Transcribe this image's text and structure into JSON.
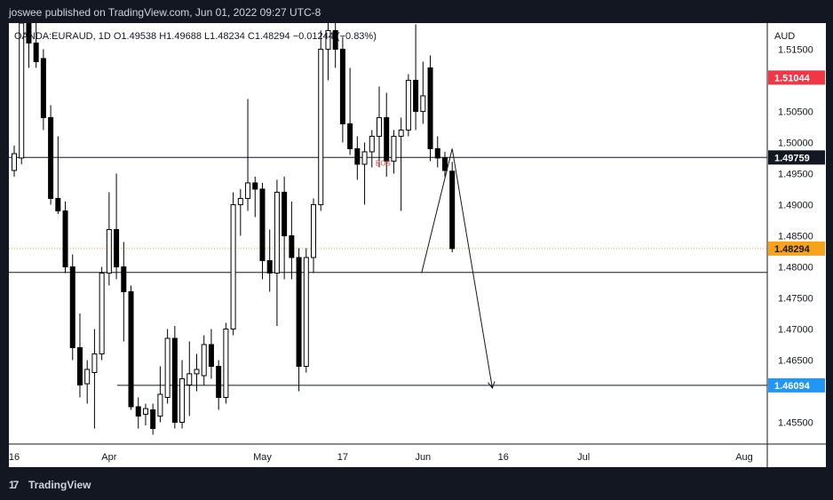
{
  "header": {
    "published": "joswee published on TradingView.com, Jun 01, 2022 09:27 UTC-8"
  },
  "footer": {
    "logo_mark": "17",
    "logo_text": "TradingView"
  },
  "chart_data": {
    "type": "candlestick",
    "symbol_line": "OANDA:EURAUD, 1D  O1.49538  H1.49688  L1.48234  C1.48294  −0.01244 (−0.83%)",
    "currency": "AUD",
    "ylim": [
      1.4515,
      1.5192
    ],
    "price_ticks": [
      "1.51500",
      "1.50500",
      "1.50000",
      "1.49500",
      "1.49000",
      "1.48500",
      "1.48000",
      "1.47500",
      "1.47000",
      "1.46500",
      "1.45500"
    ],
    "x_ticks": [
      {
        "label": "16",
        "index": 0
      },
      {
        "label": "Apr",
        "index": 13
      },
      {
        "label": "May",
        "index": 34
      },
      {
        "label": "17",
        "index": 45
      },
      {
        "label": "Jun",
        "index": 56
      },
      {
        "label": "16",
        "index": 67
      },
      {
        "label": "Jul",
        "index": 78
      },
      {
        "label": "Aug",
        "index": 100
      }
    ],
    "candles": [
      {
        "o": 1.4955,
        "h": 1.4995,
        "l": 1.4945,
        "c": 1.4982
      },
      {
        "o": 1.4975,
        "h": 1.5192,
        "l": 1.4965,
        "c": 1.5192
      },
      {
        "o": 1.5192,
        "h": 1.5192,
        "l": 1.512,
        "c": 1.516
      },
      {
        "o": 1.516,
        "h": 1.5192,
        "l": 1.512,
        "c": 1.513
      },
      {
        "o": 1.5135,
        "h": 1.515,
        "l": 1.502,
        "c": 1.504
      },
      {
        "o": 1.504,
        "h": 1.506,
        "l": 1.49,
        "c": 1.491
      },
      {
        "o": 1.491,
        "h": 1.501,
        "l": 1.4885,
        "c": 1.489
      },
      {
        "o": 1.489,
        "h": 1.4905,
        "l": 1.479,
        "c": 1.48
      },
      {
        "o": 1.48,
        "h": 1.482,
        "l": 1.465,
        "c": 1.467
      },
      {
        "o": 1.467,
        "h": 1.4725,
        "l": 1.459,
        "c": 1.461
      },
      {
        "o": 1.4612,
        "h": 1.465,
        "l": 1.458,
        "c": 1.4635
      },
      {
        "o": 1.463,
        "h": 1.47,
        "l": 1.454,
        "c": 1.466
      },
      {
        "o": 1.466,
        "h": 1.48,
        "l": 1.465,
        "c": 1.479
      },
      {
        "o": 1.479,
        "h": 1.492,
        "l": 1.477,
        "c": 1.486
      },
      {
        "o": 1.486,
        "h": 1.495,
        "l": 1.478,
        "c": 1.48
      },
      {
        "o": 1.48,
        "h": 1.484,
        "l": 1.468,
        "c": 1.476
      },
      {
        "o": 1.476,
        "h": 1.477,
        "l": 1.457,
        "c": 1.4575
      },
      {
        "o": 1.4575,
        "h": 1.459,
        "l": 1.454,
        "c": 1.456
      },
      {
        "o": 1.4563,
        "h": 1.458,
        "l": 1.4545,
        "c": 1.4572
      },
      {
        "o": 1.457,
        "h": 1.458,
        "l": 1.453,
        "c": 1.454
      },
      {
        "o": 1.456,
        "h": 1.464,
        "l": 1.455,
        "c": 1.4595
      },
      {
        "o": 1.459,
        "h": 1.47,
        "l": 1.458,
        "c": 1.4685
      },
      {
        "o": 1.4685,
        "h": 1.4705,
        "l": 1.454,
        "c": 1.455
      },
      {
        "o": 1.455,
        "h": 1.465,
        "l": 1.454,
        "c": 1.462
      },
      {
        "o": 1.461,
        "h": 1.468,
        "l": 1.456,
        "c": 1.4628
      },
      {
        "o": 1.4628,
        "h": 1.466,
        "l": 1.46,
        "c": 1.4635
      },
      {
        "o": 1.4625,
        "h": 1.469,
        "l": 1.461,
        "c": 1.4675
      },
      {
        "o": 1.4675,
        "h": 1.47,
        "l": 1.462,
        "c": 1.464
      },
      {
        "o": 1.464,
        "h": 1.465,
        "l": 1.457,
        "c": 1.459
      },
      {
        "o": 1.459,
        "h": 1.471,
        "l": 1.458,
        "c": 1.47
      },
      {
        "o": 1.47,
        "h": 1.492,
        "l": 1.469,
        "c": 1.49
      },
      {
        "o": 1.49,
        "h": 1.4925,
        "l": 1.485,
        "c": 1.491
      },
      {
        "o": 1.491,
        "h": 1.507,
        "l": 1.489,
        "c": 1.4935
      },
      {
        "o": 1.4935,
        "h": 1.4945,
        "l": 1.488,
        "c": 1.4925
      },
      {
        "o": 1.4925,
        "h": 1.4935,
        "l": 1.478,
        "c": 1.481
      },
      {
        "o": 1.481,
        "h": 1.486,
        "l": 1.476,
        "c": 1.479
      },
      {
        "o": 1.479,
        "h": 1.494,
        "l": 1.4705,
        "c": 1.492
      },
      {
        "o": 1.492,
        "h": 1.4945,
        "l": 1.478,
        "c": 1.485
      },
      {
        "o": 1.485,
        "h": 1.4905,
        "l": 1.478,
        "c": 1.4815
      },
      {
        "o": 1.4815,
        "h": 1.483,
        "l": 1.46,
        "c": 1.464
      },
      {
        "o": 1.464,
        "h": 1.483,
        "l": 1.463,
        "c": 1.4815
      },
      {
        "o": 1.4815,
        "h": 1.491,
        "l": 1.479,
        "c": 1.49
      },
      {
        "o": 1.49,
        "h": 1.518,
        "l": 1.489,
        "c": 1.515
      },
      {
        "o": 1.515,
        "h": 1.5192,
        "l": 1.51,
        "c": 1.518
      },
      {
        "o": 1.518,
        "h": 1.5192,
        "l": 1.512,
        "c": 1.515
      },
      {
        "o": 1.515,
        "h": 1.517,
        "l": 1.5,
        "c": 1.503
      },
      {
        "o": 1.503,
        "h": 1.512,
        "l": 1.498,
        "c": 1.499
      },
      {
        "o": 1.499,
        "h": 1.501,
        "l": 1.494,
        "c": 1.4965
      },
      {
        "o": 1.4965,
        "h": 1.5,
        "l": 1.49,
        "c": 1.4985
      },
      {
        "o": 1.4985,
        "h": 1.502,
        "l": 1.496,
        "c": 1.501
      },
      {
        "o": 1.501,
        "h": 1.509,
        "l": 1.496,
        "c": 1.504
      },
      {
        "o": 1.504,
        "h": 1.508,
        "l": 1.4945,
        "c": 1.497
      },
      {
        "o": 1.497,
        "h": 1.502,
        "l": 1.495,
        "c": 1.501
      },
      {
        "o": 1.501,
        "h": 1.504,
        "l": 1.489,
        "c": 1.502
      },
      {
        "o": 1.502,
        "h": 1.511,
        "l": 1.501,
        "c": 1.51
      },
      {
        "o": 1.51,
        "h": 1.519,
        "l": 1.502,
        "c": 1.505
      },
      {
        "o": 1.505,
        "h": 1.513,
        "l": 1.503,
        "c": 1.5075
      },
      {
        "o": 1.512,
        "h": 1.514,
        "l": 1.497,
        "c": 1.499
      },
      {
        "o": 1.499,
        "h": 1.501,
        "l": 1.496,
        "c": 1.4975
      },
      {
        "o": 1.4975,
        "h": 1.4985,
        "l": 1.4945,
        "c": 1.4955
      },
      {
        "o": 1.49538,
        "h": 1.49688,
        "l": 1.48234,
        "c": 1.48294
      }
    ],
    "levels": [
      {
        "price": 1.49759,
        "label": "1.49759",
        "color": "#131722"
      },
      {
        "price": 1.4791,
        "label": "",
        "color": "#131722"
      },
      {
        "price": 1.46094,
        "label": "1.46094",
        "color": "#2196f3"
      }
    ],
    "current_price": {
      "price": 1.48294,
      "label": "1.48294",
      "color": "#f7a21b"
    },
    "high_marker": {
      "price": 1.51044,
      "label": "1.51044",
      "color": "#f23645"
    },
    "annotation": {
      "text": "BOS",
      "index": 50,
      "price": 1.4963,
      "color": "#f23645"
    },
    "projection": [
      {
        "index": 55.8,
        "price": 1.479
      },
      {
        "index": 60,
        "price": 1.499
      },
      {
        "index": 65.5,
        "price": 1.4605
      }
    ],
    "colors": {
      "up": "#ffffff",
      "down": "#000000",
      "wick": "#000000"
    },
    "grid": false
  }
}
